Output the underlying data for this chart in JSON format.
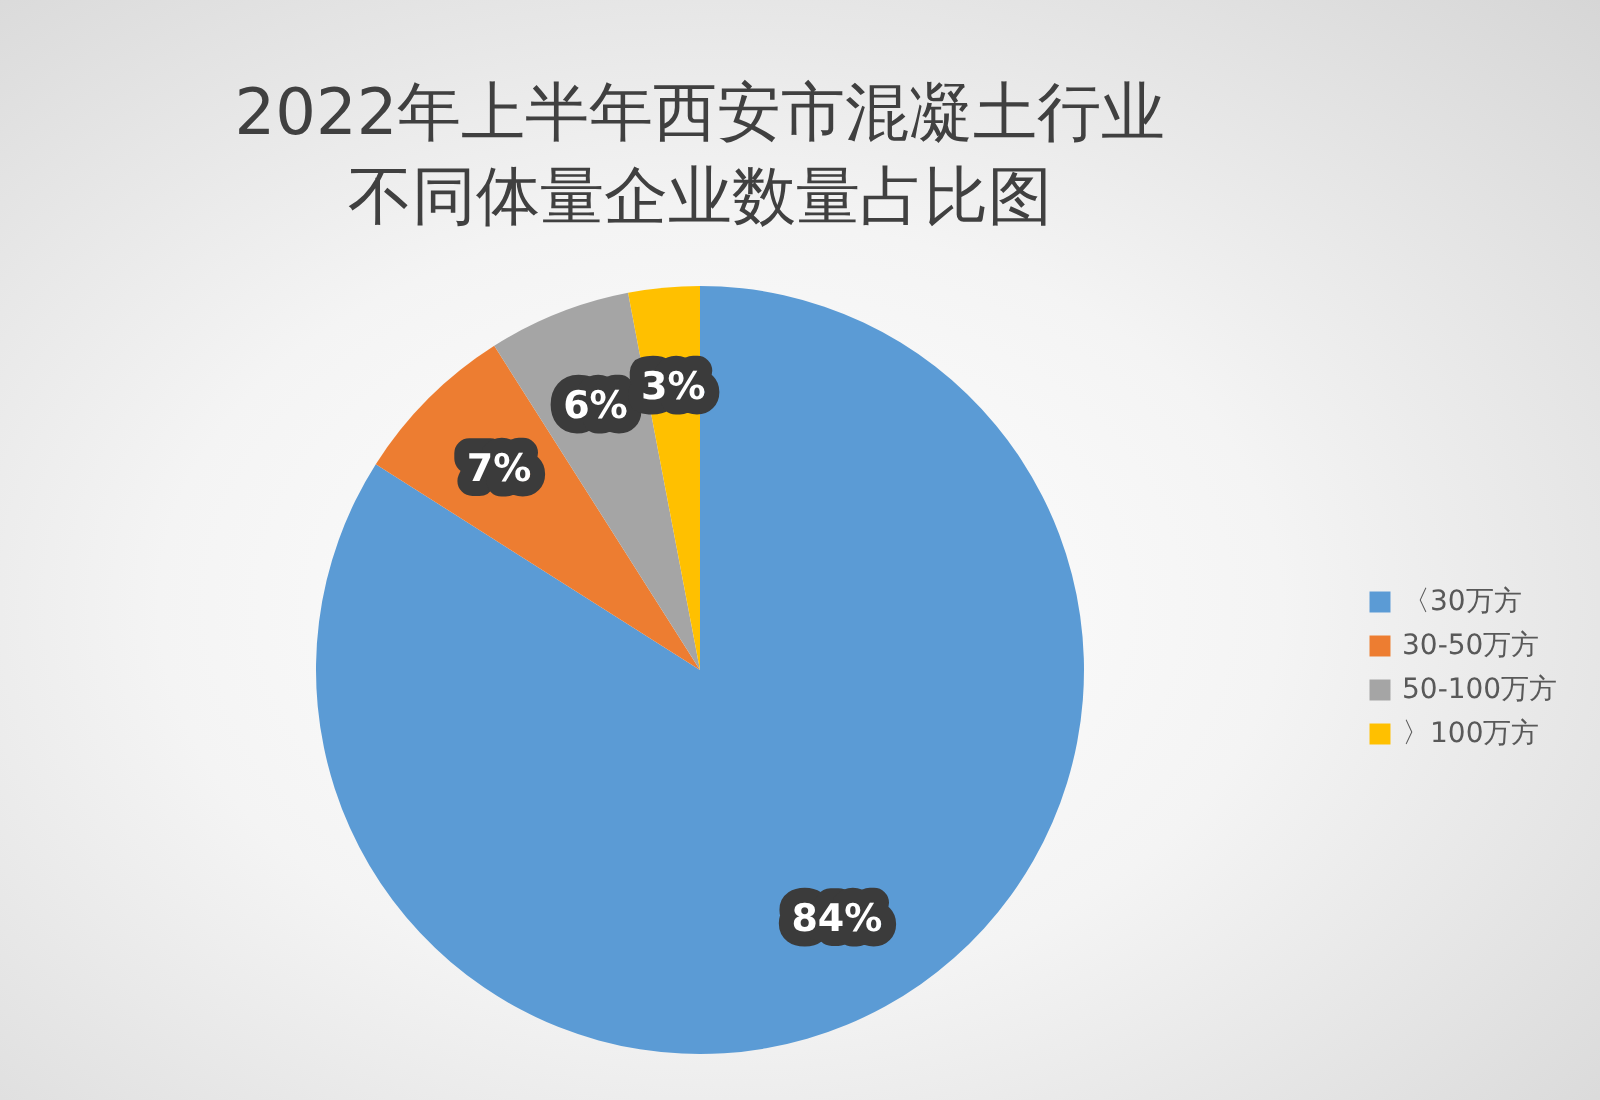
{
  "chart_data": {
    "type": "pie",
    "title": "2022年上半年西安市混凝土行业不同体量企业数量占比图",
    "categories": [
      "〈30万方",
      "30-50万方",
      "50-100万方",
      "〉100万方"
    ],
    "values": [
      84,
      7,
      6,
      3
    ],
    "colors": [
      "#5b9bd5",
      "#ed7d31",
      "#a5a5a5",
      "#ffc000"
    ],
    "value_labels": [
      "84%",
      "7%",
      "6%",
      "3%"
    ],
    "legend": "right"
  }
}
